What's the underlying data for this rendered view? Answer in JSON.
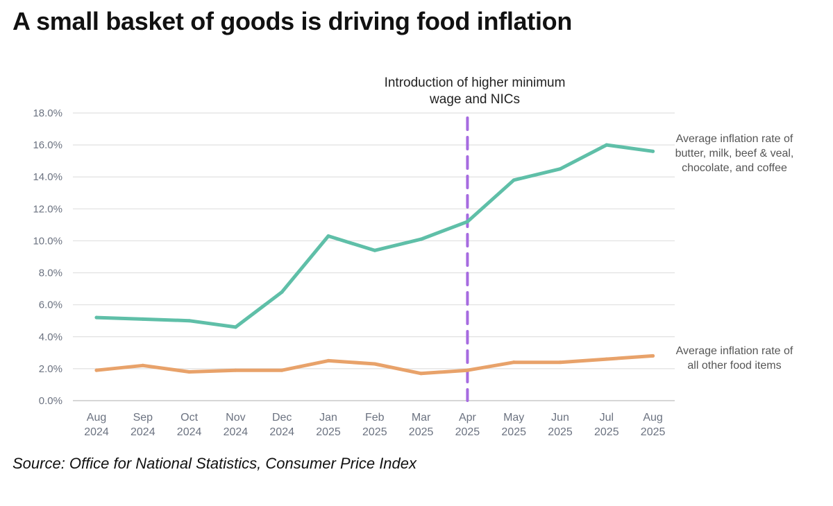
{
  "title": "A small basket of goods is driving food inflation",
  "source": "Source: Office for National Statistics, Consumer Price Index",
  "chart_data": {
    "type": "line",
    "categories": [
      [
        "Aug",
        "2024"
      ],
      [
        "Sep",
        "2024"
      ],
      [
        "Oct",
        "2024"
      ],
      [
        "Nov",
        "2024"
      ],
      [
        "Dec",
        "2024"
      ],
      [
        "Jan",
        "2025"
      ],
      [
        "Feb",
        "2025"
      ],
      [
        "Mar",
        "2025"
      ],
      [
        "Apr",
        "2025"
      ],
      [
        "May",
        "2025"
      ],
      [
        "Jun",
        "2025"
      ],
      [
        "Jul",
        "2025"
      ],
      [
        "Aug",
        "2025"
      ]
    ],
    "y_ticks": [
      "0.0%",
      "2.0%",
      "4.0%",
      "6.0%",
      "8.0%",
      "10.0%",
      "12.0%",
      "14.0%",
      "16.0%",
      "18.0%"
    ],
    "ylim": [
      0,
      18
    ],
    "grid": true,
    "series": [
      {
        "name": "basket",
        "label_lines": [
          "Average inflation rate of",
          "butter, milk, beef & veal,",
          "chocolate, and coffee"
        ],
        "color": "#5fbfa8",
        "values": [
          5.2,
          5.1,
          5.0,
          4.6,
          6.8,
          10.3,
          9.4,
          10.1,
          11.2,
          13.8,
          14.5,
          16.0,
          15.6
        ]
      },
      {
        "name": "other",
        "label_lines": [
          "Average inflation rate of",
          "all other food items"
        ],
        "color": "#e8a26a",
        "values": [
          1.9,
          2.2,
          1.8,
          1.9,
          1.9,
          2.5,
          2.3,
          1.7,
          1.9,
          2.4,
          2.4,
          2.6,
          2.8
        ]
      }
    ],
    "event_line": {
      "category_index": 8,
      "color": "#a66be0",
      "label_lines": [
        "Introduction of higher minimum",
        "wage and NICs"
      ]
    }
  }
}
